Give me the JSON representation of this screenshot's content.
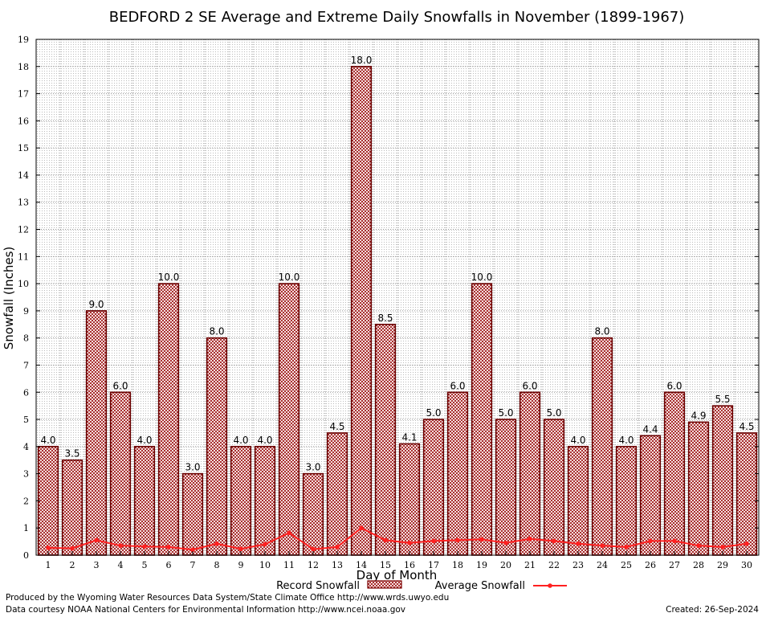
{
  "chart_data": {
    "type": "bar",
    "title": "BEDFORD 2 SE Average and Extreme Daily Snowfalls in November (1899-1967)",
    "xlabel": "Day of Month",
    "ylabel": "Snowfall (Inches)",
    "ylim": [
      0,
      19
    ],
    "yticks": [
      "0",
      "1",
      "2",
      "3",
      "4",
      "5",
      "6",
      "7",
      "8",
      "9",
      "10",
      "11",
      "12",
      "13",
      "14",
      "15",
      "16",
      "17",
      "18",
      "19"
    ],
    "categories": [
      "1",
      "2",
      "3",
      "4",
      "5",
      "6",
      "7",
      "8",
      "9",
      "10",
      "11",
      "12",
      "13",
      "14",
      "15",
      "16",
      "17",
      "18",
      "19",
      "20",
      "21",
      "22",
      "23",
      "24",
      "25",
      "26",
      "27",
      "28",
      "29",
      "30"
    ],
    "grid": true,
    "legend_placement": "bottom",
    "series": [
      {
        "name": "Record Snowfall",
        "type": "bar",
        "color": "#a01010",
        "values": [
          4.0,
          3.5,
          9.0,
          6.0,
          4.0,
          10.0,
          3.0,
          8.0,
          4.0,
          4.0,
          10.0,
          3.0,
          4.5,
          18.0,
          8.5,
          4.1,
          5.0,
          6.0,
          10.0,
          5.0,
          6.0,
          5.0,
          4.0,
          8.0,
          4.0,
          4.4,
          6.0,
          4.9,
          5.5,
          4.5
        ],
        "labels": [
          "4.0",
          "3.5",
          "9.0",
          "6.0",
          "4.0",
          "10.0",
          "3.0",
          "8.0",
          "4.0",
          "4.0",
          "10.0",
          "3.0",
          "4.5",
          "18.0",
          "8.5",
          "4.1",
          "5.0",
          "6.0",
          "10.0",
          "5.0",
          "6.0",
          "5.0",
          "4.0",
          "8.0",
          "4.0",
          "4.4",
          "6.0",
          "4.9",
          "5.5",
          "4.5"
        ]
      },
      {
        "name": "Average Snowfall",
        "type": "line",
        "color": "#ff2020",
        "values": [
          0.27,
          0.25,
          0.55,
          0.35,
          0.32,
          0.3,
          0.2,
          0.42,
          0.23,
          0.4,
          0.82,
          0.22,
          0.3,
          1.0,
          0.55,
          0.45,
          0.52,
          0.55,
          0.58,
          0.45,
          0.6,
          0.52,
          0.42,
          0.35,
          0.3,
          0.52,
          0.52,
          0.35,
          0.3,
          0.42
        ]
      }
    ]
  },
  "footer": {
    "producer": "Produced by the Wyoming Water Resources Data System/State Climate Office http://www.wrds.uwyo.edu",
    "courtesy": "Data courtesy NOAA National Centers for Environmental Information http://www.ncei.noaa.gov",
    "created": "Created:  26-Sep-2024"
  }
}
